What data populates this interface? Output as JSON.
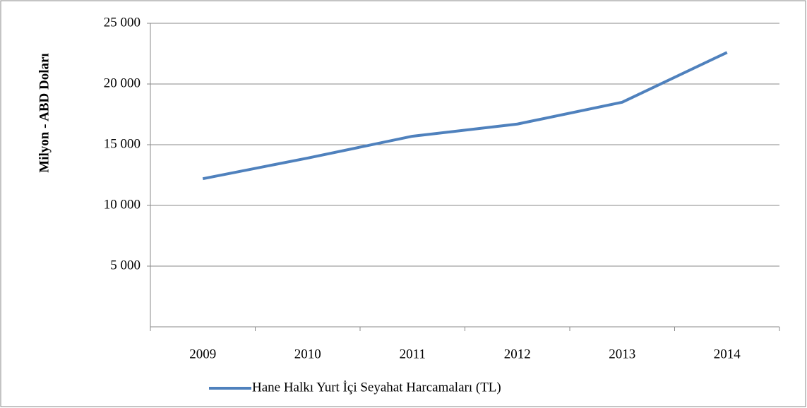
{
  "chart_data": {
    "type": "line",
    "y_axis_label": "Milyon - ABD Doları",
    "categories": [
      "2009",
      "2010",
      "2011",
      "2012",
      "2013",
      "2014"
    ],
    "series": [
      {
        "name": "Hane Halkı Yurt İçi Seyahat Harcamaları (TL)",
        "color": "#4f81bd",
        "values": [
          12200,
          13900,
          15700,
          16700,
          18500,
          22600
        ]
      }
    ],
    "ylim": [
      0,
      25000
    ],
    "yticks": [
      {
        "value": 5000,
        "label": "5 000"
      },
      {
        "value": 10000,
        "label": "10 000"
      },
      {
        "value": 15000,
        "label": "15 000"
      },
      {
        "value": 20000,
        "label": "20 000"
      },
      {
        "value": 25000,
        "label": "25 000"
      }
    ],
    "grid": true,
    "legend": "bottom"
  }
}
